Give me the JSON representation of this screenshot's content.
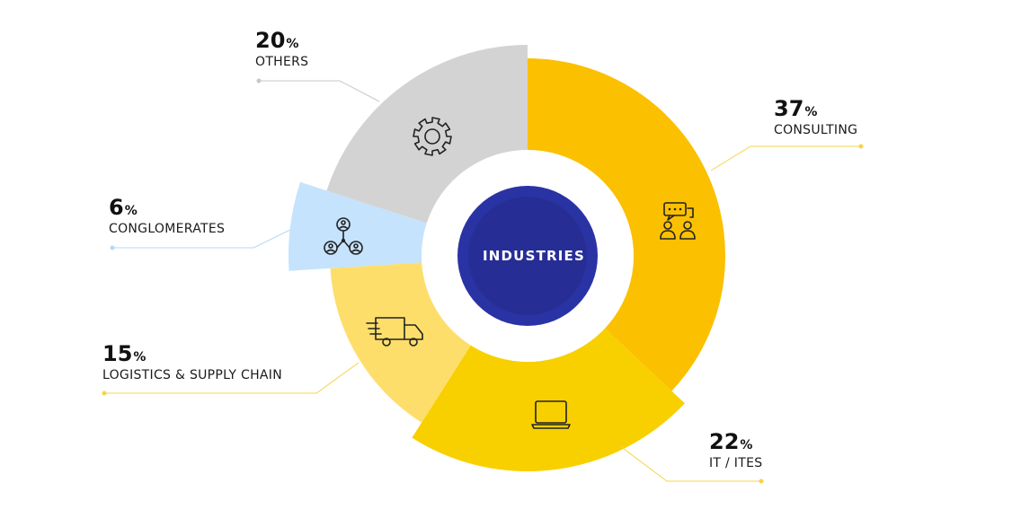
{
  "chart_data": {
    "type": "pie",
    "center_label": "INDUSTRIES",
    "categories": [
      "CONSULTING",
      "IT / ITES",
      "LOGISTICS & SUPPLY CHAIN",
      "CONGLOMERATES",
      "OTHERS"
    ],
    "values": [
      37,
      22,
      15,
      6,
      20
    ],
    "unit": "%",
    "slices": [
      {
        "label": "CONSULTING",
        "value": 37,
        "color": "#FBC000",
        "icon": "consulting-chat-people-icon"
      },
      {
        "label": "IT / ITES",
        "value": 22,
        "color": "#F8D000",
        "icon": "laptop-icon"
      },
      {
        "label": "LOGISTICS & SUPPLY CHAIN",
        "value": 15,
        "color": "#FEDE6B",
        "icon": "delivery-truck-icon"
      },
      {
        "label": "CONGLOMERATES",
        "value": 6,
        "color": "#C5E3FC",
        "icon": "network-people-icon"
      },
      {
        "label": "OTHERS",
        "value": 20,
        "color": "#D3D3D3",
        "icon": "gear-icon"
      }
    ],
    "center_color": "#2A33A4",
    "leader_line_color_yellow": "#F5D34A",
    "leader_line_color_grey": "#C8C8C8",
    "leader_line_color_blue": "#B6D9F5"
  }
}
